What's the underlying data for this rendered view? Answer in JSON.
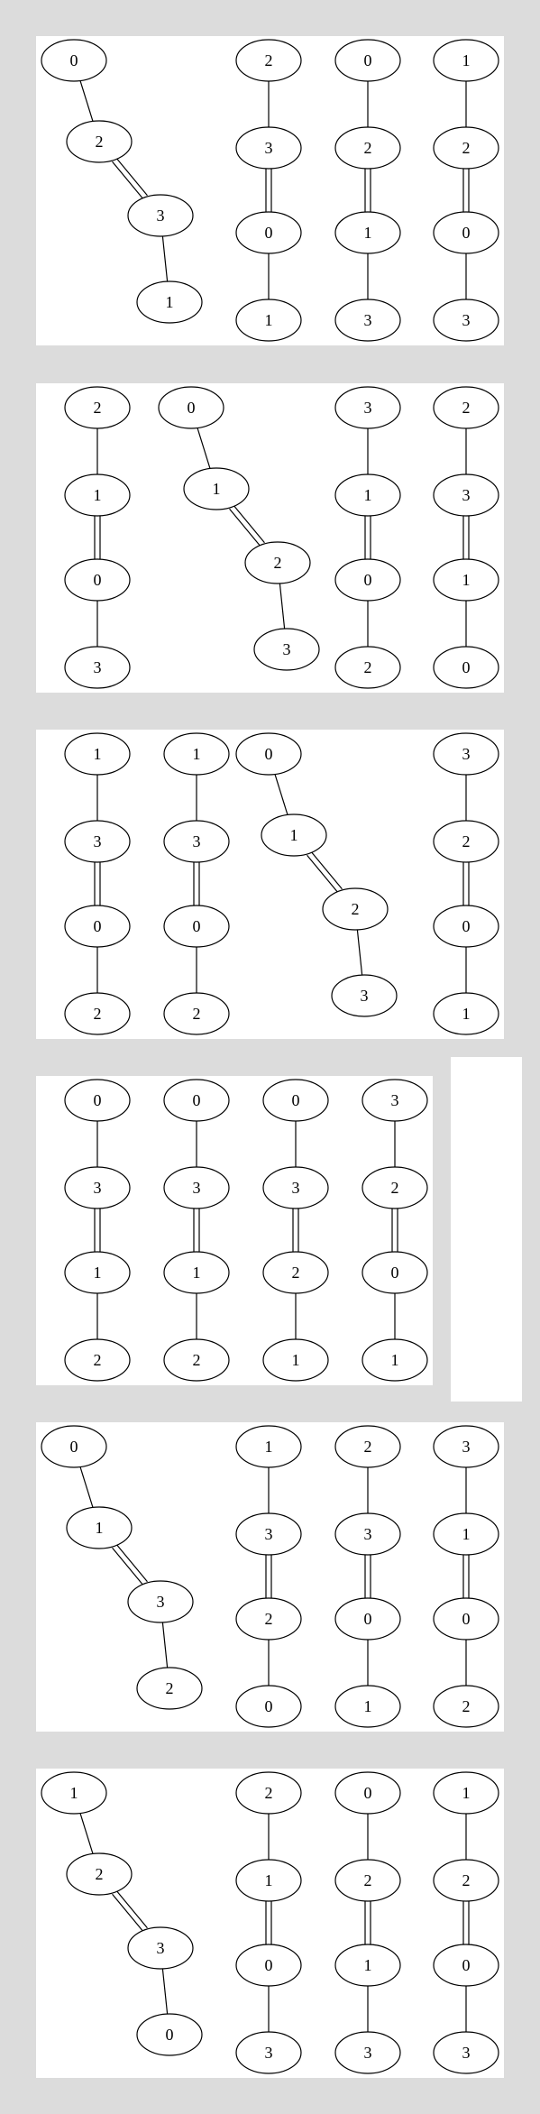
{
  "panels": [
    {
      "graphs": [
        {
          "shape": "zigzag",
          "labels": [
            "0",
            "2",
            "3",
            "1"
          ]
        },
        {
          "shape": "chain",
          "labels": [
            "2",
            "3",
            "0",
            "1"
          ]
        },
        {
          "shape": "chain",
          "labels": [
            "0",
            "2",
            "1",
            "3"
          ]
        },
        {
          "shape": "chain",
          "labels": [
            "1",
            "2",
            "0",
            "3"
          ]
        }
      ]
    },
    {
      "graphs": [
        {
          "shape": "chain",
          "labels": [
            "2",
            "1",
            "0",
            "3"
          ]
        },
        {
          "shape": "zigzag",
          "labels": [
            "0",
            "1",
            "2",
            "3"
          ]
        },
        {
          "shape": "chain",
          "labels": [
            "3",
            "1",
            "0",
            "2"
          ]
        },
        {
          "shape": "chain",
          "labels": [
            "2",
            "3",
            "1",
            "0"
          ]
        }
      ]
    },
    {
      "graphs": [
        {
          "shape": "chain",
          "labels": [
            "1",
            "3",
            "0",
            "2"
          ]
        },
        {
          "shape": "chain",
          "labels": [
            "1",
            "3",
            "0",
            "2"
          ]
        },
        {
          "shape": "zigzag",
          "labels": [
            "0",
            "1",
            "2",
            "3"
          ]
        },
        {
          "shape": "chain",
          "labels": [
            "3",
            "2",
            "0",
            "1"
          ]
        }
      ]
    },
    {
      "graphs": [
        {
          "shape": "chain",
          "labels": [
            "0",
            "3",
            "1",
            "2"
          ]
        },
        {
          "shape": "chain",
          "labels": [
            "0",
            "3",
            "1",
            "2"
          ]
        },
        {
          "shape": "chain",
          "labels": [
            "0",
            "3",
            "2",
            "1"
          ]
        },
        {
          "shape": "chain",
          "labels": [
            "3",
            "2",
            "0",
            "1"
          ]
        }
      ]
    },
    {
      "graphs": [
        {
          "shape": "zigzag",
          "labels": [
            "0",
            "1",
            "3",
            "2"
          ]
        },
        {
          "shape": "chain",
          "labels": [
            "1",
            "3",
            "2",
            "0"
          ]
        },
        {
          "shape": "chain",
          "labels": [
            "2",
            "3",
            "0",
            "1"
          ]
        },
        {
          "shape": "chain",
          "labels": [
            "3",
            "1",
            "0",
            "2"
          ]
        }
      ]
    },
    {
      "graphs": [
        {
          "shape": "zigzag",
          "labels": [
            "1",
            "2",
            "3",
            "0"
          ]
        },
        {
          "shape": "chain",
          "labels": [
            "2",
            "1",
            "0",
            "3"
          ]
        },
        {
          "shape": "chain",
          "labels": [
            "0",
            "2",
            "1",
            "3"
          ]
        },
        {
          "shape": "chain",
          "labels": [
            "1",
            "2",
            "0",
            "3"
          ]
        }
      ]
    }
  ],
  "edges_note": "double"
}
